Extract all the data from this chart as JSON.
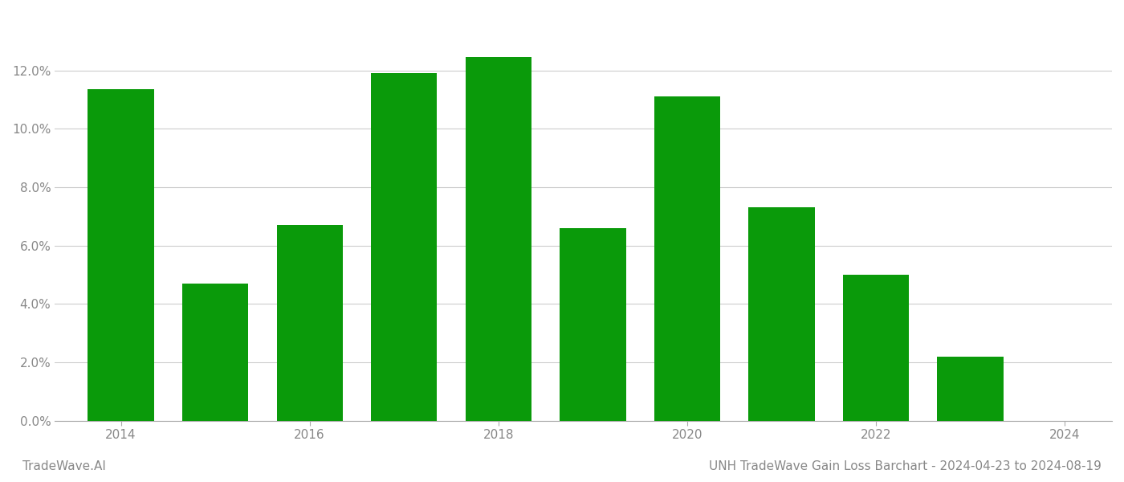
{
  "years": [
    2014,
    2015,
    2016,
    2017,
    2018,
    2019,
    2020,
    2021,
    2022,
    2023
  ],
  "values": [
    0.1135,
    0.047,
    0.067,
    0.119,
    0.1245,
    0.066,
    0.111,
    0.073,
    0.05,
    0.022
  ],
  "bar_color": "#0a9a0a",
  "background_color": "#ffffff",
  "grid_color": "#cccccc",
  "ylim": [
    0,
    0.14
  ],
  "yticks": [
    0.0,
    0.02,
    0.04,
    0.06,
    0.08,
    0.1,
    0.12
  ],
  "xticks": [
    2014,
    2016,
    2018,
    2020,
    2022,
    2024
  ],
  "xlim": [
    2013.3,
    2024.5
  ],
  "title": "UNH TradeWave Gain Loss Barchart - 2024-04-23 to 2024-08-19",
  "watermark_left": "TradeWave.AI",
  "axis_label_color": "#aaaaaa",
  "tick_label_color": "#888888",
  "title_color": "#888888",
  "watermark_color": "#888888",
  "title_fontsize": 11,
  "tick_fontsize": 11,
  "watermark_fontsize": 11,
  "bar_width": 0.7
}
